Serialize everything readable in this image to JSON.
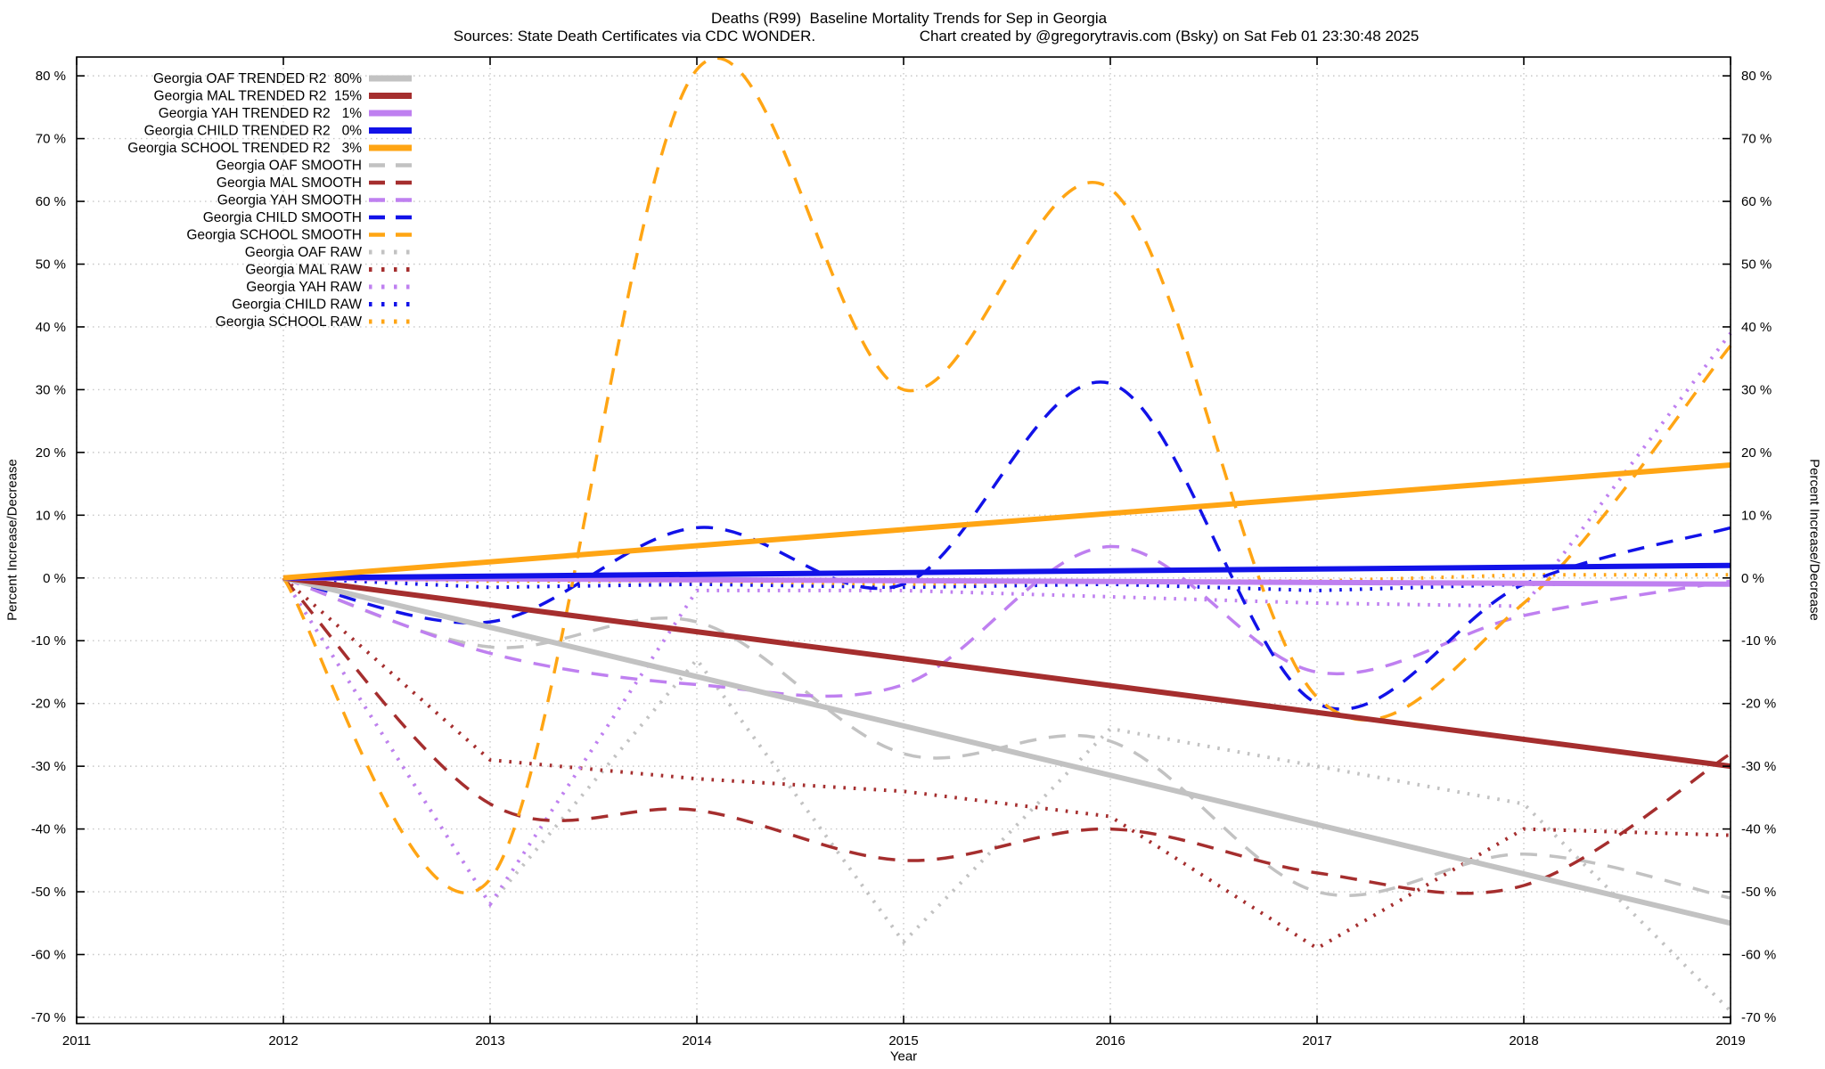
{
  "chart_data": {
    "type": "line",
    "title": "Deaths (R99)  Baseline Mortality Trends for Sep in Georgia",
    "source_note": "Sources: State Death Certificates via CDC WONDER.",
    "credit_note": "Chart created by @gregorytravis.com (Bsky) on Sat Feb 01 23:30:48 2025",
    "xlabel": "Year",
    "ylabel": "Percent Increase/Decrease",
    "xlim": [
      2011,
      2019
    ],
    "ylim": [
      -71,
      83
    ],
    "x_ticks": [
      2011,
      2012,
      2013,
      2014,
      2015,
      2016,
      2017,
      2018,
      2019
    ],
    "y_ticks": [
      -70,
      -60,
      -50,
      -40,
      -30,
      -20,
      -10,
      0,
      10,
      20,
      30,
      40,
      50,
      60,
      70,
      80
    ],
    "y_tick_suffix": " %",
    "grid": true,
    "legend_position": "top-left",
    "colors": {
      "OAF": "#c2c2c2",
      "MAL": "#a52e2e",
      "YAH": "#bf80f0",
      "CHILD": "#1212e8",
      "SCHOOL": "#ffa514",
      "grid": "#c8c8c8",
      "axis": "#000000"
    },
    "years": [
      2012,
      2013,
      2014,
      2015,
      2016,
      2017,
      2018,
      2019
    ],
    "series": [
      {
        "label": "Georgia OAF TRENDED R2  80%",
        "group": "OAF",
        "kind": "trended",
        "style": "solid",
        "years": [
          2012,
          2019
        ],
        "values": [
          0,
          -55
        ]
      },
      {
        "label": "Georgia MAL TRENDED R2  15%",
        "group": "MAL",
        "kind": "trended",
        "style": "solid",
        "years": [
          2012,
          2019
        ],
        "values": [
          0,
          -30
        ]
      },
      {
        "label": "Georgia YAH TRENDED R2   1%",
        "group": "YAH",
        "kind": "trended",
        "style": "solid",
        "years": [
          2012,
          2019
        ],
        "values": [
          0,
          -1
        ]
      },
      {
        "label": "Georgia CHILD TRENDED R2   0%",
        "group": "CHILD",
        "kind": "trended",
        "style": "solid",
        "years": [
          2012,
          2019
        ],
        "values": [
          0,
          2
        ]
      },
      {
        "label": "Georgia SCHOOL TRENDED R2   3%",
        "group": "SCHOOL",
        "kind": "trended",
        "style": "solid",
        "years": [
          2012,
          2019
        ],
        "values": [
          0,
          18
        ]
      },
      {
        "label": "Georgia OAF SMOOTH",
        "group": "OAF",
        "kind": "smooth",
        "style": "dashed",
        "values": [
          0,
          -11,
          -7,
          -28,
          -26,
          -50,
          -44,
          -51
        ]
      },
      {
        "label": "Georgia MAL SMOOTH",
        "group": "MAL",
        "kind": "smooth",
        "style": "dashed",
        "values": [
          0,
          -36,
          -37,
          -45,
          -40,
          -47,
          -49,
          -28
        ]
      },
      {
        "label": "Georgia YAH SMOOTH",
        "group": "YAH",
        "kind": "smooth",
        "style": "dashed",
        "values": [
          0,
          -12,
          -17,
          -17,
          5,
          -15,
          -6,
          -0.5
        ]
      },
      {
        "label": "Georgia CHILD SMOOTH",
        "group": "CHILD",
        "kind": "smooth",
        "style": "dashed",
        "values": [
          0,
          -7,
          8,
          -1,
          31,
          -20,
          -1,
          8
        ]
      },
      {
        "label": "Georgia SCHOOL SMOOTH",
        "group": "SCHOOL",
        "kind": "smooth",
        "style": "dashed",
        "values": [
          0,
          -48,
          81,
          30,
          62,
          -19,
          -4,
          37
        ]
      },
      {
        "label": "Georgia OAF RAW",
        "group": "OAF",
        "kind": "raw",
        "style": "dotted",
        "values": [
          0,
          -52,
          -13,
          -58,
          -24,
          -30,
          -36,
          -69
        ]
      },
      {
        "label": "Georgia MAL RAW",
        "group": "MAL",
        "kind": "raw",
        "style": "dotted",
        "values": [
          0,
          -29,
          -32,
          -34,
          -38,
          -59,
          -40,
          -41
        ]
      },
      {
        "label": "Georgia YAH RAW",
        "group": "YAH",
        "kind": "raw",
        "style": "dotted",
        "values": [
          0,
          -52,
          -2,
          -2,
          -3,
          -4,
          -4.5,
          39
        ]
      },
      {
        "label": "Georgia CHILD RAW",
        "group": "CHILD",
        "kind": "raw",
        "style": "dotted",
        "values": [
          0,
          -1.5,
          -1,
          -1.5,
          -1,
          -2,
          -1,
          -1
        ]
      },
      {
        "label": "Georgia SCHOOL RAW",
        "group": "SCHOOL",
        "kind": "raw",
        "style": "dotted",
        "values": [
          0,
          -0.5,
          -0.5,
          -1,
          -0.5,
          -0.5,
          0.5,
          0.5
        ]
      }
    ]
  }
}
